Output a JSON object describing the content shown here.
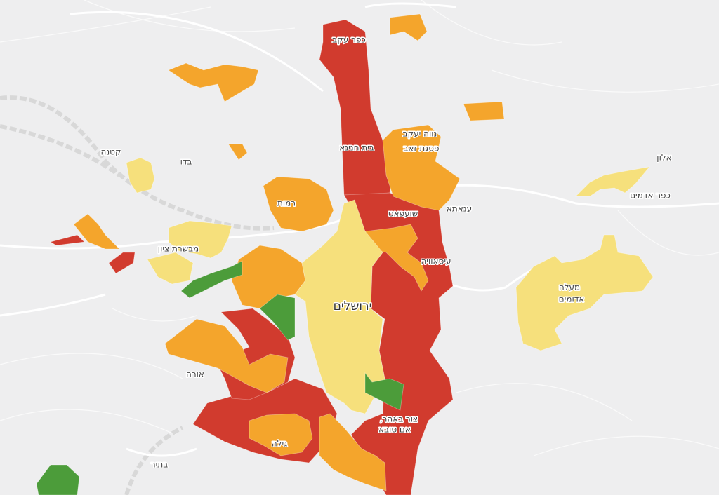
{
  "map": {
    "labels": [
      {
        "text": "כפר עקב"
      },
      {
        "text": "נווה יעקב"
      },
      {
        "text": "בית חנינא"
      },
      {
        "text": "פסגת זאב"
      },
      {
        "text": "רמות"
      },
      {
        "text": "שועפאט"
      },
      {
        "text": "ענאתא"
      },
      {
        "text": "עיסאוויה"
      },
      {
        "text": "מבשרת ציון"
      },
      {
        "text": "ירושלים"
      },
      {
        "text": "קטנה"
      },
      {
        "text": "בדו"
      },
      {
        "text": "אלון"
      },
      {
        "text": "כפר אדמים"
      },
      {
        "text": "מעלה"
      },
      {
        "text": "אדומים"
      },
      {
        "text": "אורה"
      },
      {
        "text": "גילה"
      },
      {
        "text": "צור באהר,"
      },
      {
        "text": "אם טובא"
      },
      {
        "text": "בתיר"
      }
    ]
  }
}
